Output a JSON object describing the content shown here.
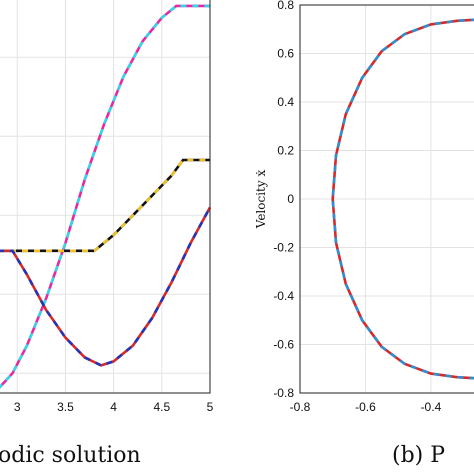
{
  "chart_data": [
    {
      "type": "line",
      "title": "",
      "caption": "odic solution",
      "xlabel": "",
      "ylabel": "",
      "xlim": [
        2.8,
        5
      ],
      "ylim": [
        0,
        1
      ],
      "x_ticks": [
        "3",
        "3.5",
        "4",
        "4.5",
        "5"
      ],
      "x_tick_values": [
        3,
        3.5,
        4,
        4.5,
        5
      ],
      "y_tick_values": [
        0.05,
        0.25,
        0.45,
        0.65,
        0.85
      ],
      "grid": true,
      "series": [
        {
          "color": "#e6299f",
          "dash_color": "#35d4ea",
          "x": [
            2.8,
            2.95,
            3.1,
            3.3,
            3.5,
            3.7,
            3.9,
            4.1,
            4.3,
            4.5,
            4.65,
            4.8,
            5.0
          ],
          "y": [
            0.01,
            0.05,
            0.12,
            0.24,
            0.38,
            0.54,
            0.68,
            0.8,
            0.89,
            0.95,
            0.98,
            0.98,
            0.98
          ]
        },
        {
          "color": "#111111",
          "dash_color": "#f0c02a",
          "x": [
            2.8,
            3.0,
            3.3,
            3.6,
            3.8,
            4.0,
            4.2,
            4.4,
            4.6,
            4.72,
            4.85,
            5.0
          ],
          "y": [
            0.36,
            0.36,
            0.36,
            0.36,
            0.36,
            0.4,
            0.45,
            0.5,
            0.55,
            0.59,
            0.59,
            0.59
          ]
        },
        {
          "color": "#d62a2a",
          "dash_color": "#2234b8",
          "x": [
            2.8,
            2.95,
            3.1,
            3.3,
            3.5,
            3.7,
            3.87,
            4.0,
            4.2,
            4.4,
            4.6,
            4.8,
            5.0
          ],
          "y": [
            0.36,
            0.36,
            0.3,
            0.21,
            0.14,
            0.09,
            0.07,
            0.08,
            0.12,
            0.19,
            0.28,
            0.38,
            0.47
          ]
        }
      ]
    },
    {
      "type": "line",
      "title": "",
      "caption": "(b) P",
      "xlabel": "",
      "ylabel": "Velocity ẋ",
      "xlim": [
        -0.8,
        -0.25
      ],
      "ylim": [
        -0.8,
        0.8
      ],
      "x_ticks": [
        "-0.8",
        "-0.6",
        "-0.4"
      ],
      "x_tick_values": [
        -0.8,
        -0.6,
        -0.4
      ],
      "y_ticks": [
        "0.8",
        "0.6",
        "0.4",
        "0.2",
        "0",
        "-0.2",
        "-0.4",
        "-0.6",
        "-0.8"
      ],
      "y_tick_values": [
        0.8,
        0.6,
        0.4,
        0.2,
        0,
        -0.2,
        -0.4,
        -0.6,
        -0.8
      ],
      "grid": true,
      "series": [
        {
          "color": "#d62a2a",
          "dash_color": "#2f8fd0",
          "x": [
            -0.26,
            -0.32,
            -0.4,
            -0.48,
            -0.55,
            -0.61,
            -0.66,
            -0.69,
            -0.7,
            -0.69,
            -0.66,
            -0.61,
            -0.55,
            -0.48,
            -0.4,
            -0.32,
            -0.26
          ],
          "y": [
            0.74,
            0.735,
            0.72,
            0.68,
            0.61,
            0.5,
            0.35,
            0.18,
            0.0,
            -0.18,
            -0.35,
            -0.5,
            -0.61,
            -0.68,
            -0.72,
            -0.735,
            -0.74
          ]
        }
      ]
    }
  ]
}
